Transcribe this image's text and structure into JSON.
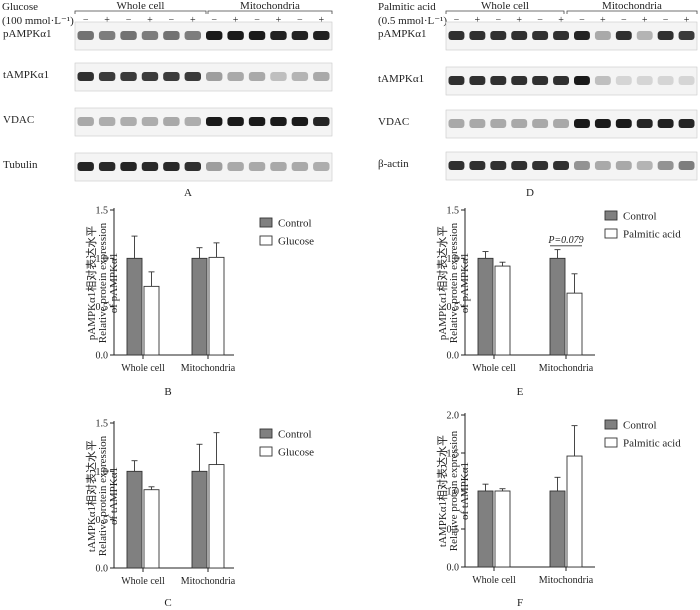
{
  "blots": {
    "A": {
      "treatment_line1": "Glucose",
      "treatment_line2": "(100 mmol·L⁻¹)",
      "group_left": "Whole cell",
      "group_right": "Mitochondria",
      "signs": [
        "−",
        "+",
        "−",
        "+",
        "−",
        "+",
        "−",
        "+",
        "−",
        "+",
        "−",
        "+"
      ],
      "rows": [
        "pAMPKα1",
        "tAMPKα1",
        "VDAC",
        "Tubulin"
      ],
      "intensity": [
        [
          0.55,
          0.5,
          0.55,
          0.5,
          0.55,
          0.5,
          0.95,
          0.95,
          0.95,
          0.92,
          0.92,
          0.92
        ],
        [
          0.85,
          0.8,
          0.8,
          0.8,
          0.8,
          0.8,
          0.35,
          0.3,
          0.3,
          0.2,
          0.25,
          0.3
        ],
        [
          0.3,
          0.28,
          0.28,
          0.28,
          0.3,
          0.28,
          0.95,
          0.95,
          0.95,
          0.95,
          0.95,
          0.9
        ],
        [
          0.9,
          0.88,
          0.9,
          0.88,
          0.88,
          0.85,
          0.35,
          0.3,
          0.3,
          0.3,
          0.3,
          0.28
        ]
      ],
      "letter": "A"
    },
    "D": {
      "treatment_line1": "Palmitic acid",
      "treatment_line2": "(0.5 mmol·L⁻¹)",
      "group_left": "Whole cell",
      "group_right": "Mitochondria",
      "signs": [
        "−",
        "+",
        "−",
        "+",
        "−",
        "+",
        "−",
        "+",
        "−",
        "+",
        "−",
        "+"
      ],
      "rows": [
        "pAMPKα1",
        "tAMPKα1",
        "VDAC",
        "β-actin"
      ],
      "intensity": [
        [
          0.85,
          0.85,
          0.85,
          0.85,
          0.85,
          0.85,
          0.9,
          0.3,
          0.85,
          0.25,
          0.85,
          0.8
        ],
        [
          0.85,
          0.85,
          0.85,
          0.85,
          0.85,
          0.85,
          0.95,
          0.2,
          0.1,
          0.1,
          0.1,
          0.1
        ],
        [
          0.3,
          0.3,
          0.3,
          0.3,
          0.3,
          0.3,
          0.95,
          0.95,
          0.95,
          0.9,
          0.92,
          0.9
        ],
        [
          0.85,
          0.85,
          0.85,
          0.85,
          0.85,
          0.85,
          0.4,
          0.3,
          0.3,
          0.25,
          0.4,
          0.5
        ]
      ],
      "letter": "D"
    }
  },
  "chart_data": [
    {
      "panel": "B",
      "type": "bar",
      "categories": [
        "Whole cell",
        "Mitochondria"
      ],
      "series": [
        {
          "name": "Control",
          "values": [
            1.0,
            1.0
          ],
          "errors": [
            0.23,
            0.11
          ],
          "color": "#808080"
        },
        {
          "name": "Glucose",
          "values": [
            0.71,
            1.01
          ],
          "errors": [
            0.15,
            0.15
          ],
          "color": "#ffffff"
        }
      ],
      "ylabel_lines": [
        "pAMPKα1相对表达水平",
        "Relative protein expression",
        "of pAMPKα1"
      ],
      "yticks": [
        "0.0",
        "0.5",
        "1.0",
        "1.5"
      ],
      "ylim": [
        0,
        1.5
      ],
      "legend_position": "top-right",
      "annotation": ""
    },
    {
      "panel": "C",
      "type": "bar",
      "categories": [
        "Whole cell",
        "Mitochondria"
      ],
      "series": [
        {
          "name": "Control",
          "values": [
            1.0,
            1.0
          ],
          "errors": [
            0.11,
            0.28
          ],
          "color": "#808080"
        },
        {
          "name": "Glucose",
          "values": [
            0.81,
            1.07
          ],
          "errors": [
            0.03,
            0.33
          ],
          "color": "#ffffff"
        }
      ],
      "ylabel_lines": [
        "tAMPKα1相对表达水平",
        "Relative protein expression",
        "of tAMPKα1"
      ],
      "yticks": [
        "0.0",
        "0.5",
        "1.0",
        "1.5"
      ],
      "ylim": [
        0,
        1.5
      ],
      "legend_position": "top-right",
      "annotation": ""
    },
    {
      "panel": "E",
      "type": "bar",
      "categories": [
        "Whole cell",
        "Mitochondria"
      ],
      "series": [
        {
          "name": "Control",
          "values": [
            1.0,
            1.0
          ],
          "errors": [
            0.07,
            0.09
          ],
          "color": "#808080"
        },
        {
          "name": "Palmitic acid",
          "values": [
            0.92,
            0.64
          ],
          "errors": [
            0.04,
            0.2
          ],
          "color": "#ffffff"
        }
      ],
      "ylabel_lines": [
        "pAMPKα1相对表达水平",
        "Relative protein expression",
        "of pAMPKα1"
      ],
      "yticks": [
        "0.0",
        "0.5",
        "1.0",
        "1.5"
      ],
      "ylim": [
        0,
        1.5
      ],
      "legend_position": "top-right",
      "annotation": "P=0.079"
    },
    {
      "panel": "F",
      "type": "bar",
      "categories": [
        "Whole cell",
        "Mitochondria"
      ],
      "series": [
        {
          "name": "Control",
          "values": [
            1.0,
            1.0
          ],
          "errors": [
            0.09,
            0.18
          ],
          "color": "#808080"
        },
        {
          "name": "Palmitic acid",
          "values": [
            1.0,
            1.46
          ],
          "errors": [
            0.03,
            0.4
          ],
          "color": "#ffffff"
        }
      ],
      "ylabel_lines": [
        "tAMPKα1相对表达水平",
        "Relative protein expression",
        "of tAMPKα1"
      ],
      "yticks": [
        "0.0",
        "0.5",
        "1.0",
        "1.5",
        "2.0"
      ],
      "ylim": [
        0,
        2.0
      ],
      "legend_position": "top-right",
      "annotation": ""
    }
  ]
}
